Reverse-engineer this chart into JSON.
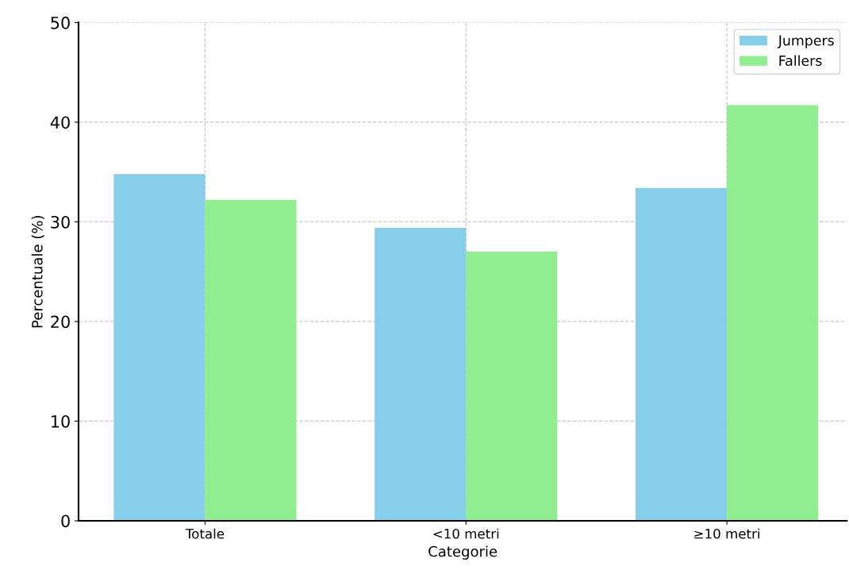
{
  "chart_data": {
    "type": "bar",
    "xlabel": "Categorie",
    "ylabel": "Percentuale (%)",
    "categories": [
      "Totale",
      "<10 metri",
      "≥10 metri"
    ],
    "series": [
      {
        "name": "Jumpers",
        "color": "#87ceeb",
        "values": [
          34.8,
          29.4,
          33.4
        ]
      },
      {
        "name": "Fallers",
        "color": "#90ee90",
        "values": [
          32.2,
          27.0,
          41.7
        ]
      }
    ],
    "ylim": [
      0,
      50
    ],
    "yticks": [
      0,
      10,
      20,
      30,
      40,
      50
    ],
    "grid": true,
    "legend": "top right"
  }
}
